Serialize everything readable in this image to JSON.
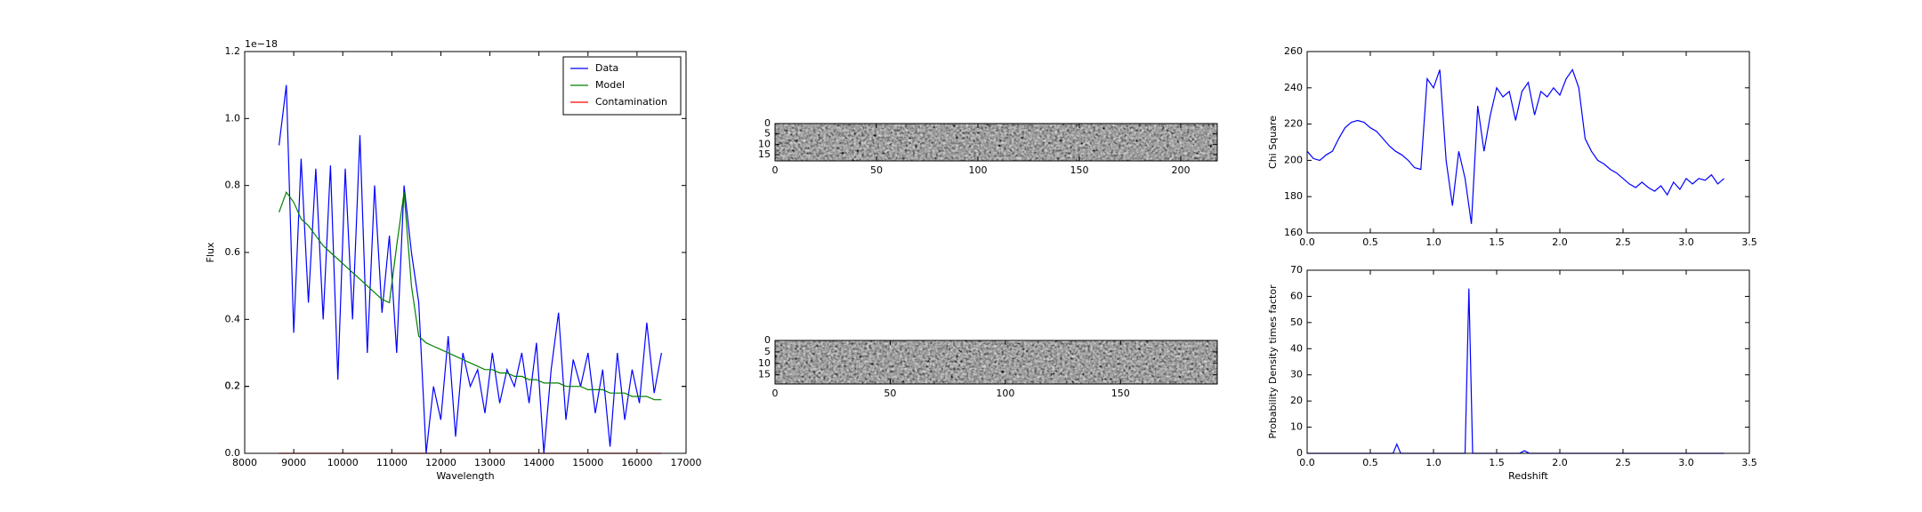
{
  "chart_data": [
    {
      "type": "line",
      "xlabel": "Wavelength",
      "ylabel": "Flux",
      "offset_text": "1e−18",
      "xlim": [
        8000,
        17000
      ],
      "xticks": [
        8000,
        9000,
        10000,
        11000,
        12000,
        13000,
        14000,
        15000,
        16000,
        17000
      ],
      "ylim": [
        0,
        1.2
      ],
      "yticks": [
        {
          "value": 0,
          "label": "0.0"
        },
        0.2,
        0.4,
        0.6,
        0.8,
        {
          "value": 1,
          "label": "1.0"
        },
        0.2,
        {
          "value": 1.2,
          "label": "1.2"
        }
      ],
      "legend": "upper right",
      "x": [
        8700,
        8850,
        9000,
        9150,
        9300,
        9450,
        9600,
        9750,
        9900,
        10050,
        10200,
        10350,
        10500,
        10650,
        10800,
        10950,
        11100,
        11250,
        11400,
        11550,
        11700,
        11850,
        12000,
        12150,
        12300,
        12450,
        12600,
        12750,
        12900,
        13050,
        13200,
        13350,
        13500,
        13650,
        13800,
        13950,
        14100,
        14250,
        14400,
        14550,
        14700,
        14850,
        15000,
        15150,
        15300,
        15450,
        15600,
        15750,
        15900,
        16050,
        16200,
        16350,
        16500
      ],
      "series": [
        {
          "name": "Data",
          "color": "#0000ff",
          "values": [
            0.92,
            1.1,
            0.36,
            0.88,
            0.45,
            0.85,
            0.4,
            0.86,
            0.22,
            0.85,
            0.4,
            0.95,
            0.3,
            0.8,
            0.42,
            0.65,
            0.3,
            0.8,
            0.6,
            0.45,
            0.0,
            0.2,
            0.1,
            0.35,
            0.05,
            0.3,
            0.2,
            0.25,
            0.12,
            0.3,
            0.15,
            0.25,
            0.2,
            0.3,
            0.15,
            0.33,
            0.0,
            0.25,
            0.42,
            0.1,
            0.28,
            0.2,
            0.3,
            0.12,
            0.25,
            0.02,
            0.3,
            0.1,
            0.25,
            0.15,
            0.39,
            0.18,
            0.3
          ]
        },
        {
          "name": "Model",
          "color": "#008000",
          "values": [
            0.72,
            0.78,
            0.75,
            0.7,
            0.68,
            0.65,
            0.62,
            0.6,
            0.58,
            0.56,
            0.54,
            0.52,
            0.5,
            0.48,
            0.46,
            0.45,
            0.62,
            0.78,
            0.5,
            0.35,
            0.33,
            0.32,
            0.31,
            0.3,
            0.29,
            0.28,
            0.27,
            0.26,
            0.25,
            0.25,
            0.24,
            0.24,
            0.23,
            0.23,
            0.22,
            0.22,
            0.21,
            0.21,
            0.21,
            0.2,
            0.2,
            0.2,
            0.19,
            0.19,
            0.19,
            0.18,
            0.18,
            0.18,
            0.17,
            0.17,
            0.17,
            0.16,
            0.16
          ]
        },
        {
          "name": "Contamination",
          "color": "#ff0000",
          "values": [
            0,
            0,
            0,
            0,
            0,
            0,
            0,
            0,
            0,
            0,
            0,
            0,
            0,
            0,
            0,
            0,
            0,
            0,
            0,
            0,
            0,
            0,
            0,
            0,
            0,
            0,
            0,
            0,
            0,
            0,
            0,
            0,
            0,
            0,
            0,
            0,
            0,
            0,
            0,
            0,
            0,
            0,
            0,
            0,
            0,
            0,
            0,
            0,
            0,
            0,
            0,
            0,
            0
          ]
        }
      ]
    },
    {
      "type": "image",
      "xlim": [
        0,
        218
      ],
      "xticks": [
        0,
        50,
        100,
        150,
        200
      ],
      "ylim": [
        18,
        0
      ],
      "yticks": [
        0,
        5,
        10,
        15
      ]
    },
    {
      "type": "image",
      "xlim": [
        0,
        192
      ],
      "xticks": [
        0,
        50,
        100,
        150
      ],
      "ylim": [
        19,
        0
      ],
      "yticks": [
        0,
        5,
        10,
        15
      ]
    },
    {
      "type": "line",
      "ylabel": "Chi Square",
      "xlim": [
        0,
        3.5
      ],
      "xticks": [
        {
          "value": 0,
          "label": "0.0"
        },
        0.5,
        {
          "value": 1,
          "label": "1.0"
        },
        1.5,
        {
          "value": 2,
          "label": "2.0"
        },
        2.5,
        {
          "value": 3,
          "label": "3.0"
        },
        3.5
      ],
      "ylim": [
        160,
        260
      ],
      "yticks": [
        160,
        180,
        200,
        220,
        240,
        260
      ],
      "x": [
        0,
        0.05,
        0.1,
        0.15,
        0.2,
        0.25,
        0.3,
        0.35,
        0.4,
        0.45,
        0.5,
        0.55,
        0.6,
        0.65,
        0.7,
        0.75,
        0.8,
        0.85,
        0.9,
        0.95,
        1,
        1.05,
        1.1,
        1.15,
        1.2,
        1.25,
        1.3,
        1.35,
        1.4,
        1.45,
        1.5,
        1.55,
        1.6,
        1.65,
        1.7,
        1.75,
        1.8,
        1.85,
        1.9,
        1.95,
        2,
        2.05,
        2.1,
        2.15,
        2.2,
        2.25,
        2.3,
        2.35,
        2.4,
        2.45,
        2.5,
        2.55,
        2.6,
        2.65,
        2.7,
        2.75,
        2.8,
        2.85,
        2.9,
        2.95,
        3,
        3.05,
        3.1,
        3.15,
        3.2,
        3.25,
        3.3
      ],
      "series": [
        {
          "color": "#0000ff",
          "values": [
            205,
            201,
            200,
            203,
            205,
            212,
            218,
            221,
            222,
            221,
            218,
            216,
            212,
            208,
            205,
            203,
            200,
            196,
            195,
            245,
            240,
            250,
            200,
            175,
            205,
            190,
            165,
            230,
            205,
            225,
            240,
            235,
            238,
            222,
            238,
            243,
            225,
            238,
            235,
            240,
            236,
            245,
            250,
            240,
            212,
            205,
            200,
            198,
            195,
            193,
            190,
            187,
            185,
            188,
            185,
            183,
            186,
            181,
            188,
            184,
            190,
            187,
            190,
            189,
            192,
            187,
            190
          ]
        }
      ]
    },
    {
      "type": "line",
      "xlabel": "Redshift",
      "ylabel": "Probability Density times factor",
      "xlim": [
        0,
        3.5
      ],
      "xticks": [
        {
          "value": 0,
          "label": "0.0"
        },
        0.5,
        {
          "value": 1,
          "label": "1.0"
        },
        1.5,
        {
          "value": 2,
          "label": "2.0"
        },
        2.5,
        {
          "value": 3,
          "label": "3.0"
        },
        3.5
      ],
      "ylim": [
        0,
        70
      ],
      "yticks": [
        0,
        10,
        20,
        30,
        40,
        50,
        60,
        70
      ],
      "x": [
        0,
        0.68,
        0.71,
        0.74,
        1.25,
        1.28,
        1.31,
        1.68,
        1.72,
        1.76,
        3.3
      ],
      "series": [
        {
          "color": "#0000ff",
          "values": [
            0,
            0,
            3.5,
            0,
            0,
            63,
            0,
            0,
            1,
            0,
            0
          ]
        }
      ]
    }
  ]
}
